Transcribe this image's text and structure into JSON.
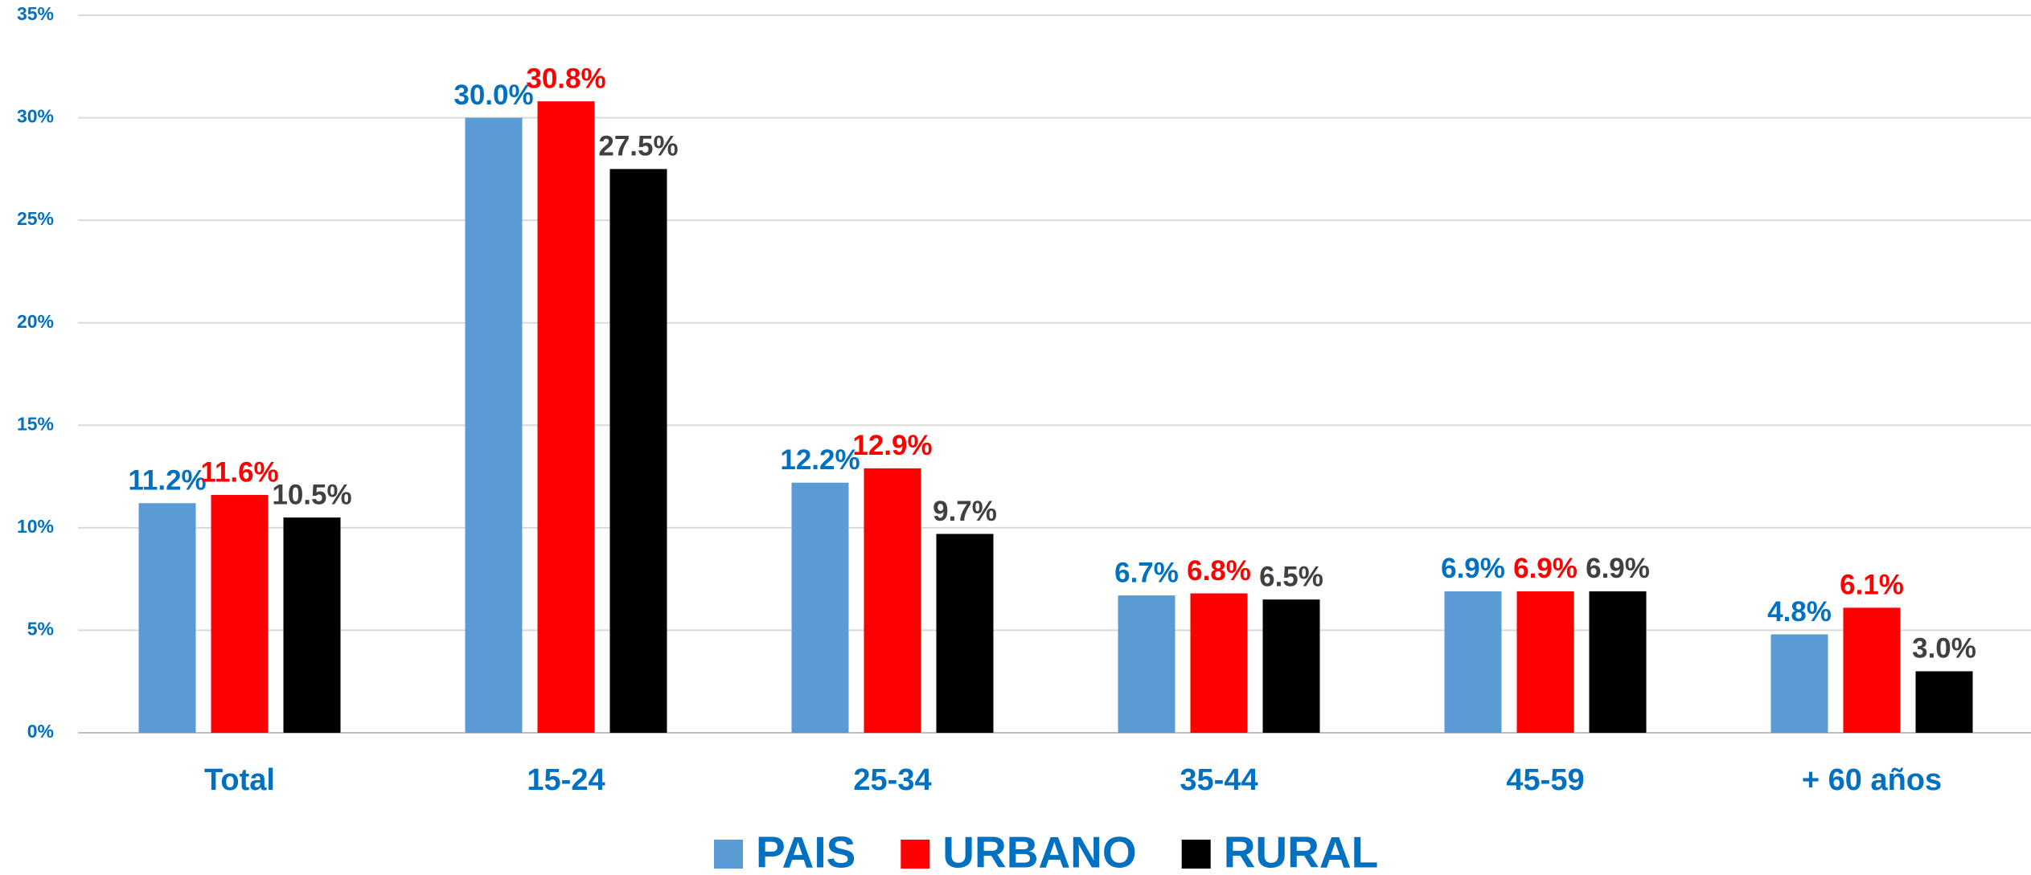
{
  "chart_data": {
    "type": "bar",
    "categories": [
      "Total",
      "15-24",
      "25-34",
      "35-44",
      "45-59",
      "+ 60 años"
    ],
    "series": [
      {
        "name": "PAIS",
        "color": "#5b9bd5",
        "label_color": "#0070c0",
        "values": [
          11.2,
          30.0,
          12.2,
          6.7,
          6.9,
          4.8
        ],
        "value_labels": [
          "11.2%",
          "30.0%",
          "12.2%",
          "6.7%",
          "6.9%",
          "4.8%"
        ]
      },
      {
        "name": "URBANO",
        "color": "#ff0000",
        "label_color": "#ff0000",
        "values": [
          11.6,
          30.8,
          12.9,
          6.8,
          6.9,
          6.1
        ],
        "value_labels": [
          "11.6%",
          "30.8%",
          "12.9%",
          "6.8%",
          "6.9%",
          "6.1%"
        ]
      },
      {
        "name": "RURAL",
        "color": "#000000",
        "label_color": "#404040",
        "values": [
          10.5,
          27.5,
          9.7,
          6.5,
          6.9,
          3.0
        ],
        "value_labels": [
          "10.5%",
          "27.5%",
          "9.7%",
          "6.5%",
          "6.9%",
          "3.0%"
        ]
      }
    ],
    "ylim": [
      0,
      35
    ],
    "yticks": [
      {
        "value": 0,
        "label": "0%"
      },
      {
        "value": 5,
        "label": "5%"
      },
      {
        "value": 10,
        "label": "10%"
      },
      {
        "value": 15,
        "label": "15%"
      },
      {
        "value": 20,
        "label": "20%"
      },
      {
        "value": 25,
        "label": "25%"
      },
      {
        "value": 30,
        "label": "30%"
      },
      {
        "value": 35,
        "label": "35%"
      }
    ],
    "grid": true,
    "legend": "bottom"
  }
}
